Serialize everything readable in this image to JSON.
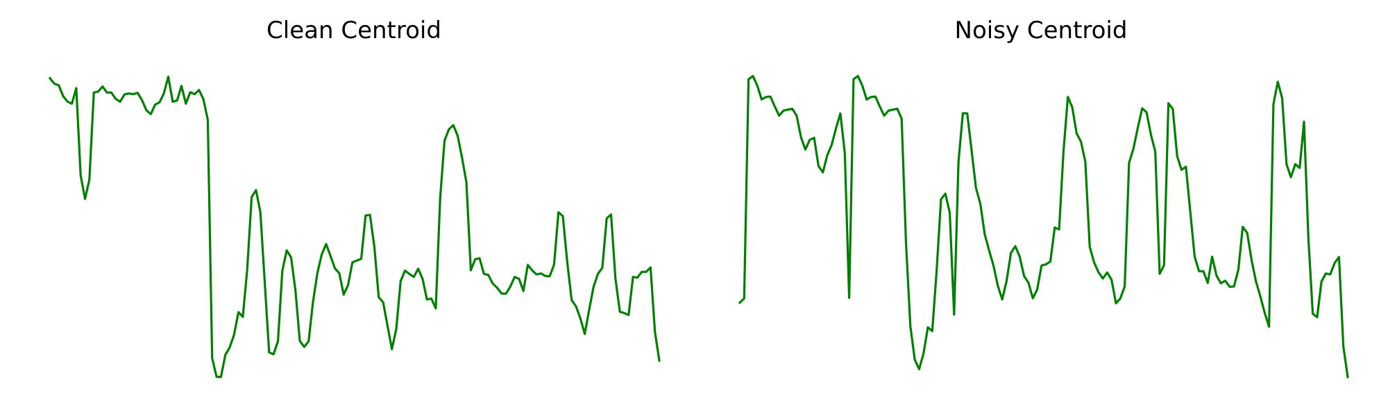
{
  "line_color": "#008000",
  "chart_data": [
    {
      "type": "line",
      "title": "Clean Centroid",
      "xlabel": "",
      "ylabel": "",
      "grid": false,
      "axes_visible": false,
      "xlim": [
        0,
        137
      ],
      "ylim": [
        0,
        1
      ],
      "series": [
        {
          "values": [
            0.963,
            0.946,
            0.941,
            0.907,
            0.889,
            0.883,
            0.932,
            0.657,
            0.582,
            0.643,
            0.918,
            0.921,
            0.937,
            0.918,
            0.918,
            0.898,
            0.889,
            0.912,
            0.915,
            0.913,
            0.917,
            0.894,
            0.862,
            0.85,
            0.88,
            0.887,
            0.916,
            0.968,
            0.889,
            0.893,
            0.939,
            0.883,
            0.919,
            0.913,
            0.926,
            0.897,
            0.832,
            0.08,
            0.021,
            0.02,
            0.09,
            0.114,
            0.154,
            0.225,
            0.21,
            0.359,
            0.588,
            0.61,
            0.54,
            0.318,
            0.098,
            0.092,
            0.133,
            0.355,
            0.42,
            0.398,
            0.294,
            0.134,
            0.115,
            0.133,
            0.257,
            0.348,
            0.407,
            0.44,
            0.402,
            0.363,
            0.348,
            0.28,
            0.31,
            0.382,
            0.388,
            0.393,
            0.53,
            0.532,
            0.432,
            0.272,
            0.256,
            0.182,
            0.108,
            0.172,
            0.323,
            0.356,
            0.345,
            0.336,
            0.362,
            0.33,
            0.265,
            0.268,
            0.237,
            0.583,
            0.766,
            0.802,
            0.815,
            0.782,
            0.712,
            0.634,
            0.357,
            0.392,
            0.395,
            0.346,
            0.342,
            0.315,
            0.302,
            0.284,
            0.283,
            0.305,
            0.336,
            0.33,
            0.292,
            0.374,
            0.357,
            0.344,
            0.347,
            0.339,
            0.338,
            0.375,
            0.54,
            0.528,
            0.382,
            0.263,
            0.243,
            0.205,
            0.156,
            0.232,
            0.305,
            0.346,
            0.365,
            0.521,
            0.533,
            0.331,
            0.226,
            0.222,
            0.216,
            0.336,
            0.334,
            0.352,
            0.352,
            0.366,
            0.163,
            0.072
          ]
        }
      ]
    },
    {
      "type": "line",
      "title": "Noisy Centroid",
      "xlabel": "",
      "ylabel": "",
      "grid": false,
      "axes_visible": false,
      "xlim": [
        0,
        137
      ],
      "ylim": [
        0,
        1
      ],
      "series": [
        {
          "values": [
            0.255,
            0.268,
            0.96,
            0.97,
            0.94,
            0.896,
            0.904,
            0.905,
            0.874,
            0.845,
            0.861,
            0.864,
            0.867,
            0.845,
            0.777,
            0.738,
            0.769,
            0.775,
            0.686,
            0.666,
            0.72,
            0.752,
            0.805,
            0.852,
            0.727,
            0.27,
            0.96,
            0.97,
            0.94,
            0.896,
            0.904,
            0.905,
            0.874,
            0.845,
            0.861,
            0.864,
            0.867,
            0.835,
            0.442,
            0.18,
            0.075,
            0.045,
            0.094,
            0.177,
            0.165,
            0.355,
            0.581,
            0.599,
            0.539,
            0.217,
            0.699,
            0.853,
            0.852,
            0.735,
            0.617,
            0.567,
            0.471,
            0.42,
            0.372,
            0.308,
            0.265,
            0.323,
            0.412,
            0.433,
            0.4,
            0.339,
            0.318,
            0.269,
            0.296,
            0.372,
            0.376,
            0.385,
            0.492,
            0.486,
            0.731,
            0.904,
            0.872,
            0.789,
            0.763,
            0.699,
            0.431,
            0.382,
            0.351,
            0.331,
            0.35,
            0.327,
            0.253,
            0.268,
            0.306,
            0.696,
            0.741,
            0.807,
            0.868,
            0.856,
            0.785,
            0.731,
            0.346,
            0.373,
            0.884,
            0.866,
            0.717,
            0.674,
            0.684,
            0.542,
            0.4,
            0.354,
            0.354,
            0.317,
            0.4,
            0.34,
            0.316,
            0.324,
            0.305,
            0.306,
            0.359,
            0.494,
            0.475,
            0.39,
            0.322,
            0.275,
            0.223,
            0.179,
            0.881,
            0.952,
            0.9,
            0.692,
            0.651,
            0.692,
            0.68,
            0.826,
            0.458,
            0.22,
            0.209,
            0.322,
            0.347,
            0.344,
            0.38,
            0.399,
            0.116,
            0.02
          ]
        }
      ]
    }
  ]
}
